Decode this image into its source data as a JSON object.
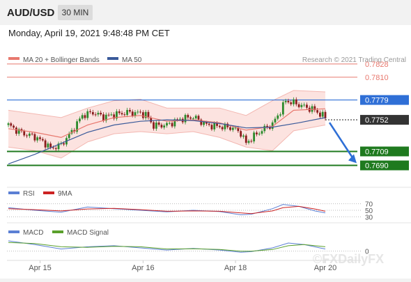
{
  "header": {
    "symbol": "AUD/USD",
    "timeframe": "30 MIN",
    "datetime": "Monday, April 19, 2021 9:48:48 PM CET"
  },
  "legend": {
    "ma20": "MA 20 + Bollinger Bands",
    "ma50": "MA 50",
    "rsi": "RSI",
    "rsi_ma": "9MA",
    "macd": "MACD",
    "macd_signal": "MACD Signal"
  },
  "credit": "Research © 2021 Trading Central",
  "watermark": "©FXDailyFX",
  "colors": {
    "resistance": "#e8786e",
    "pivot": "#2f6fd6",
    "support": "#1f7a1f",
    "current": "#333333",
    "ma20": "#e8786e",
    "ma50": "#3a5a9a",
    "band_fill": "#fbd9d6",
    "candle_up": "#2b8a2b",
    "candle_down": "#8a1c1c",
    "rsi": "#5b7fd4",
    "rsi_ma": "#cc2222",
    "macd": "#5b7fd4",
    "macd_signal": "#5aa02c"
  },
  "chart_data": {
    "type": "candlestick",
    "title": "AUD/USD",
    "x_tick_labels": [
      "Apr 15",
      "Apr 16",
      "Apr 18",
      "Apr 20"
    ],
    "y_range": [
      0.7682,
      0.7843
    ],
    "levels": [
      {
        "value": 0.7828,
        "label": "0.7828",
        "kind": "resistance"
      },
      {
        "value": 0.781,
        "label": "0.7810",
        "kind": "resistance"
      },
      {
        "value": 0.7779,
        "label": "0.7779",
        "kind": "pivot"
      },
      {
        "value": 0.7752,
        "label": "0.7752",
        "kind": "current"
      },
      {
        "value": 0.7709,
        "label": "0.7709",
        "kind": "support"
      },
      {
        "value": 0.769,
        "label": "0.7690",
        "kind": "support"
      }
    ],
    "price_path": [
      [
        0,
        0.7745
      ],
      [
        3,
        0.7738
      ],
      [
        6,
        0.7733
      ],
      [
        10,
        0.7729
      ],
      [
        14,
        0.772
      ],
      [
        16,
        0.7713
      ],
      [
        20,
        0.7718
      ],
      [
        24,
        0.7736
      ],
      [
        28,
        0.7758
      ],
      [
        32,
        0.7762
      ],
      [
        36,
        0.7756
      ],
      [
        40,
        0.7759
      ],
      [
        45,
        0.7762
      ],
      [
        50,
        0.7761
      ],
      [
        52,
        0.7759
      ],
      [
        55,
        0.7744
      ],
      [
        60,
        0.7745
      ],
      [
        65,
        0.7753
      ],
      [
        70,
        0.7756
      ],
      [
        75,
        0.7745
      ],
      [
        80,
        0.7743
      ],
      [
        85,
        0.7741
      ],
      [
        88,
        0.7734
      ],
      [
        90,
        0.772
      ],
      [
        92,
        0.7727
      ],
      [
        96,
        0.7738
      ],
      [
        100,
        0.7746
      ],
      [
        103,
        0.7764
      ],
      [
        105,
        0.7778
      ],
      [
        108,
        0.7775
      ],
      [
        112,
        0.777
      ],
      [
        116,
        0.7765
      ],
      [
        120,
        0.7755
      ]
    ],
    "ma20": [
      [
        0,
        0.774
      ],
      [
        10,
        0.7735
      ],
      [
        20,
        0.7728
      ],
      [
        30,
        0.7745
      ],
      [
        40,
        0.7755
      ],
      [
        50,
        0.7758
      ],
      [
        60,
        0.775
      ],
      [
        70,
        0.7752
      ],
      [
        80,
        0.7748
      ],
      [
        90,
        0.7738
      ],
      [
        100,
        0.7743
      ],
      [
        108,
        0.7765
      ],
      [
        120,
        0.7767
      ]
    ],
    "ma50": [
      [
        0,
        0.7692
      ],
      [
        10,
        0.7705
      ],
      [
        20,
        0.772
      ],
      [
        30,
        0.7735
      ],
      [
        40,
        0.7745
      ],
      [
        50,
        0.775
      ],
      [
        60,
        0.7752
      ],
      [
        70,
        0.7751
      ],
      [
        80,
        0.7747
      ],
      [
        90,
        0.7741
      ],
      [
        100,
        0.7742
      ],
      [
        110,
        0.7748
      ],
      [
        120,
        0.7755
      ]
    ],
    "bollinger_upper": [
      [
        0,
        0.7765
      ],
      [
        10,
        0.776
      ],
      [
        20,
        0.7755
      ],
      [
        30,
        0.7768
      ],
      [
        40,
        0.7778
      ],
      [
        50,
        0.778
      ],
      [
        60,
        0.7768
      ],
      [
        70,
        0.7768
      ],
      [
        80,
        0.7768
      ],
      [
        90,
        0.7758
      ],
      [
        100,
        0.7778
      ],
      [
        108,
        0.7792
      ],
      [
        120,
        0.779
      ]
    ],
    "bollinger_lower": [
      [
        0,
        0.7715
      ],
      [
        10,
        0.771
      ],
      [
        20,
        0.77
      ],
      [
        30,
        0.7722
      ],
      [
        40,
        0.7733
      ],
      [
        50,
        0.7736
      ],
      [
        60,
        0.7733
      ],
      [
        70,
        0.7736
      ],
      [
        80,
        0.7728
      ],
      [
        90,
        0.7715
      ],
      [
        100,
        0.771
      ],
      [
        108,
        0.7737
      ],
      [
        120,
        0.7745
      ]
    ],
    "forecast": {
      "from": 0.7752,
      "to": 0.7709
    },
    "rsi": {
      "levels": [
        70,
        50,
        30
      ],
      "y_range": [
        20,
        80
      ],
      "rsi": [
        [
          0,
          58
        ],
        [
          10,
          50
        ],
        [
          20,
          44
        ],
        [
          30,
          60
        ],
        [
          40,
          55
        ],
        [
          50,
          50
        ],
        [
          60,
          45
        ],
        [
          70,
          50
        ],
        [
          80,
          46
        ],
        [
          88,
          36
        ],
        [
          92,
          38
        ],
        [
          100,
          55
        ],
        [
          104,
          68
        ],
        [
          110,
          62
        ],
        [
          116,
          48
        ],
        [
          120,
          42
        ]
      ],
      "rsi_ma": [
        [
          0,
          55
        ],
        [
          10,
          52
        ],
        [
          20,
          48
        ],
        [
          30,
          54
        ],
        [
          40,
          56
        ],
        [
          50,
          52
        ],
        [
          60,
          47
        ],
        [
          70,
          48
        ],
        [
          80,
          47
        ],
        [
          88,
          42
        ],
        [
          92,
          40
        ],
        [
          100,
          48
        ],
        [
          104,
          58
        ],
        [
          110,
          62
        ],
        [
          116,
          54
        ],
        [
          120,
          47
        ]
      ]
    },
    "macd": {
      "levels": [
        0
      ],
      "y_range": [
        -0.0006,
        0.0012
      ],
      "macd": [
        [
          0,
          0.00095
        ],
        [
          10,
          0.0006
        ],
        [
          20,
          0.0002
        ],
        [
          30,
          0.0004
        ],
        [
          40,
          0.0005
        ],
        [
          50,
          0.0003
        ],
        [
          60,
          0.0001
        ],
        [
          70,
          0.00025
        ],
        [
          80,
          0.0001
        ],
        [
          88,
          -0.0001
        ],
        [
          92,
          -5e-05
        ],
        [
          100,
          0.0003
        ],
        [
          106,
          0.00075
        ],
        [
          112,
          0.0006
        ],
        [
          120,
          0.0002
        ]
      ],
      "signal": [
        [
          0,
          0.0008
        ],
        [
          10,
          0.0007
        ],
        [
          20,
          0.0004
        ],
        [
          30,
          0.00035
        ],
        [
          40,
          0.00045
        ],
        [
          50,
          0.0004
        ],
        [
          60,
          0.0002
        ],
        [
          70,
          0.00022
        ],
        [
          80,
          0.00015
        ],
        [
          88,
          0.0
        ],
        [
          92,
          0.0
        ],
        [
          100,
          0.00015
        ],
        [
          106,
          0.0005
        ],
        [
          112,
          0.0006
        ],
        [
          120,
          0.0004
        ]
      ]
    }
  }
}
